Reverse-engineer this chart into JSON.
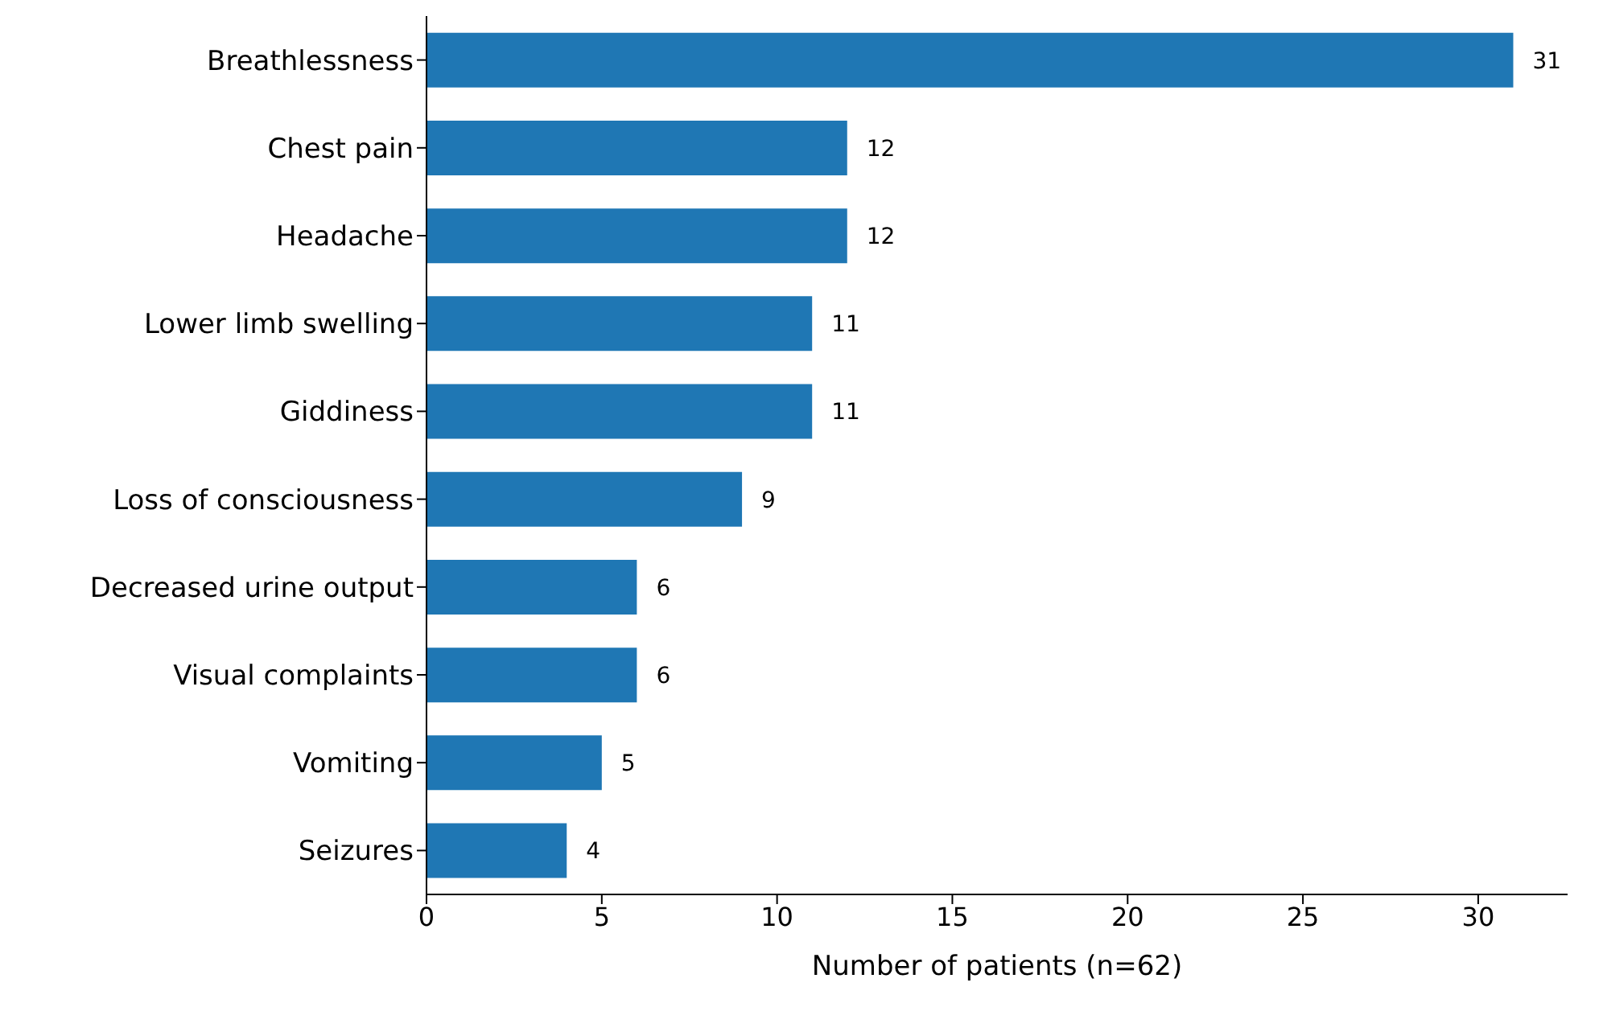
{
  "chart_data": {
    "type": "bar",
    "orientation": "horizontal",
    "xlabel": "Number of patients (n=62)",
    "categories": [
      "Breathlessness",
      "Chest pain",
      "Headache",
      "Lower limb swelling",
      "Giddiness",
      "Loss of consciousness",
      "Decreased urine output",
      "Visual complaints",
      "Vomiting",
      "Seizures"
    ],
    "values": [
      31,
      12,
      12,
      11,
      11,
      9,
      6,
      6,
      5,
      4
    ],
    "color": "#1f77b4",
    "xlim": [
      0,
      32.55
    ],
    "xticks": [
      0,
      5,
      10,
      15,
      20,
      25,
      30
    ],
    "data_labels": true
  }
}
